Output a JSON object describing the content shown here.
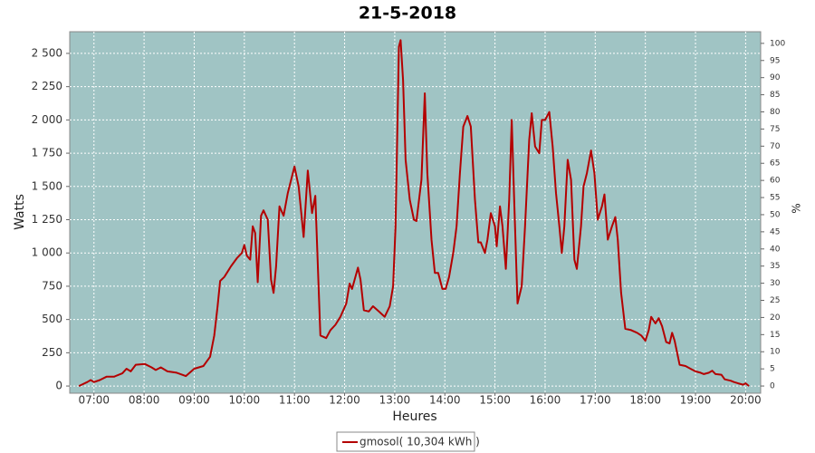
{
  "chart_data": {
    "type": "line",
    "title": "21-5-2018",
    "x_label": "Heures",
    "y_label": "Watts",
    "y2_label": "%",
    "x": [
      "06:42",
      "06:52",
      "06:56",
      "07:00",
      "07:07",
      "07:15",
      "07:24",
      "07:34",
      "07:39",
      "07:44",
      "07:50",
      "08:01",
      "08:09",
      "08:14",
      "08:20",
      "08:28",
      "08:39",
      "08:50",
      "09:00",
      "09:11",
      "09:19",
      "09:24",
      "09:28",
      "09:31",
      "09:36",
      "09:44",
      "09:51",
      "09:57",
      "10:00",
      "10:03",
      "10:07",
      "10:10",
      "10:13",
      "10:16",
      "10:20",
      "10:23",
      "10:28",
      "10:32",
      "10:35",
      "10:38",
      "10:42",
      "10:47",
      "10:52",
      "11:00",
      "11:05",
      "11:11",
      "11:16",
      "11:21",
      "11:25",
      "11:28",
      "11:31",
      "11:38",
      "11:43",
      "11:49",
      "11:55",
      "12:02",
      "12:06",
      "12:09",
      "12:16",
      "12:19",
      "12:23",
      "12:29",
      "12:34",
      "12:41",
      "12:48",
      "12:54",
      "12:58",
      "13:01",
      "13:05",
      "13:07",
      "13:10",
      "13:13",
      "13:18",
      "13:23",
      "13:26",
      "13:32",
      "13:36",
      "13:39",
      "13:44",
      "13:48",
      "13:52",
      "13:57",
      "14:01",
      "14:05",
      "14:10",
      "14:14",
      "14:18",
      "14:22",
      "14:27",
      "14:31",
      "14:36",
      "14:40",
      "14:43",
      "14:48",
      "14:51",
      "14:55",
      "15:00",
      "15:02",
      "15:06",
      "15:09",
      "15:13",
      "15:17",
      "15:20",
      "15:23",
      "15:27",
      "15:32",
      "15:36",
      "15:41",
      "15:44",
      "15:48",
      "15:53",
      "15:56",
      "16:00",
      "16:05",
      "16:09",
      "16:13",
      "16:17",
      "16:20",
      "16:23",
      "16:27",
      "16:31",
      "16:35",
      "16:38",
      "16:43",
      "16:46",
      "16:50",
      "16:55",
      "16:59",
      "17:03",
      "17:08",
      "17:11",
      "17:15",
      "17:20",
      "17:24",
      "17:27",
      "17:31",
      "17:36",
      "17:43",
      "17:50",
      "17:55",
      "18:00",
      "18:04",
      "18:07",
      "18:12",
      "18:16",
      "18:20",
      "18:25",
      "18:29",
      "18:32",
      "18:35",
      "18:41",
      "18:48",
      "18:54",
      "19:00",
      "19:06",
      "19:10",
      "19:16",
      "19:20",
      "19:24",
      "19:31",
      "19:35",
      "19:42",
      "19:46",
      "19:51",
      "19:57",
      "20:00",
      "20:04"
    ],
    "series": [
      {
        "name": "gmosol( 10,304 kWh )",
        "color": "#b40000",
        "values": [
          0,
          30,
          45,
          30,
          45,
          70,
          70,
          95,
          130,
          110,
          160,
          165,
          140,
          120,
          140,
          110,
          100,
          75,
          130,
          150,
          220,
          380,
          600,
          790,
          820,
          900,
          960,
          1000,
          1060,
          980,
          950,
          1200,
          1150,
          780,
          1280,
          1320,
          1250,
          800,
          700,
          900,
          1350,
          1280,
          1450,
          1650,
          1500,
          1120,
          1620,
          1300,
          1430,
          900,
          380,
          360,
          420,
          460,
          520,
          620,
          770,
          730,
          890,
          800,
          570,
          560,
          600,
          560,
          520,
          600,
          750,
          1200,
          2550,
          2600,
          2300,
          1700,
          1400,
          1250,
          1240,
          1550,
          2200,
          1600,
          1100,
          850,
          850,
          730,
          730,
          820,
          1000,
          1200,
          1600,
          1950,
          2030,
          1950,
          1400,
          1080,
          1080,
          1000,
          1100,
          1300,
          1200,
          1050,
          1350,
          1200,
          880,
          1400,
          2000,
          1400,
          620,
          750,
          1200,
          1850,
          2050,
          1800,
          1750,
          2000,
          2000,
          2060,
          1800,
          1450,
          1200,
          1000,
          1200,
          1700,
          1550,
          950,
          880,
          1200,
          1500,
          1600,
          1770,
          1600,
          1250,
          1350,
          1440,
          1100,
          1200,
          1270,
          1100,
          700,
          430,
          420,
          400,
          380,
          340,
          420,
          520,
          470,
          510,
          450,
          330,
          320,
          400,
          340,
          160,
          150,
          130,
          110,
          100,
          90,
          100,
          115,
          90,
          85,
          50,
          40,
          30,
          20,
          10,
          20,
          0
        ]
      }
    ],
    "xlim": [
      "06:31",
      "20:18"
    ],
    "xticks": [
      "07:00",
      "08:00",
      "09:00",
      "10:00",
      "11:00",
      "12:00",
      "13:00",
      "14:00",
      "15:00",
      "16:00",
      "17:00",
      "18:00",
      "19:00",
      "20:00"
    ],
    "ylim": [
      -54,
      2663
    ],
    "yticks": [
      0,
      250,
      500,
      750,
      {
        "value": 1000,
        "label": "1 000"
      },
      {
        "value": 1250,
        "label": "1 250"
      },
      {
        "value": 1500,
        "label": "1 500"
      },
      {
        "value": 1750,
        "label": "1 750"
      },
      {
        "value": 2000,
        "label": "2 000"
      },
      {
        "value": 2250,
        "label": "2 250"
      },
      {
        "value": 2500,
        "label": "2 500"
      }
    ],
    "y2lim": [
      -2.1,
      103.4
    ],
    "y2ticks": [
      0,
      5,
      10,
      15,
      20,
      25,
      30,
      35,
      40,
      45,
      50,
      55,
      60,
      65,
      70,
      75,
      80,
      85,
      90,
      95,
      100
    ],
    "grid": true,
    "legend": "bottom"
  }
}
